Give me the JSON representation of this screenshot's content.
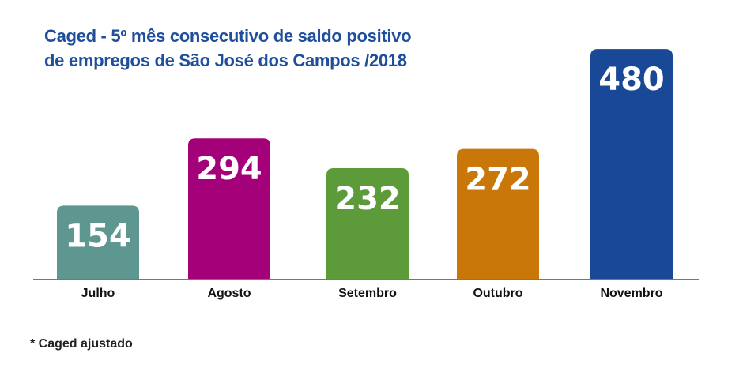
{
  "chart_data": {
    "type": "bar",
    "title_lines": [
      "Caged - 5º mês consecutivo de saldo positivo",
      "de empregos de São José dos Campos /2018"
    ],
    "categories": [
      "Julho",
      "Agosto",
      "Setembro",
      "Outubro",
      "Novembro"
    ],
    "values": [
      154,
      294,
      232,
      272,
      480
    ],
    "colors": [
      "#5e9690",
      "#a3007a",
      "#5d9a3a",
      "#c97709",
      "#184896"
    ],
    "data_labels": [
      "154",
      "294",
      "232",
      "272",
      "480"
    ],
    "grid": false,
    "legend": "none"
  },
  "footnote": "* Caged ajustado"
}
